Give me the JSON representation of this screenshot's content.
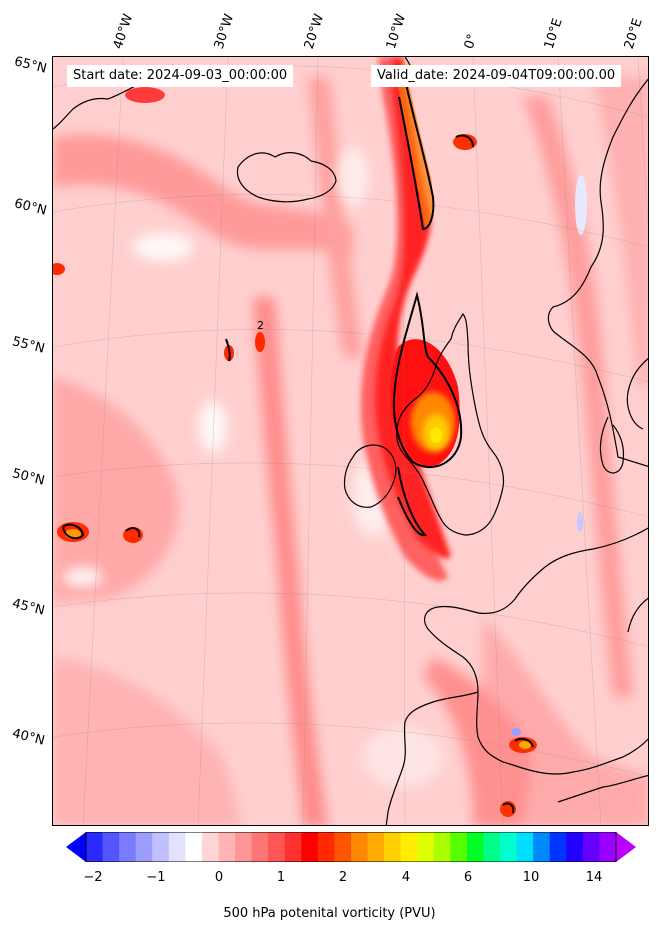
{
  "map": {
    "start_date": "Start date: 2024-09-03_00:00:00",
    "valid_date": "Valid_date: 2024-09-04T09:00:00.00",
    "lat_labels": [
      "65°N",
      "60°N",
      "55°N",
      "50°N",
      "45°N",
      "40°N"
    ],
    "lon_labels": [
      "40°W",
      "30°W",
      "20°W",
      "10°W",
      "0°",
      "10°E",
      "20°E"
    ],
    "contour_label": "2"
  },
  "colorbar": {
    "label": "500 hPa potenital vorticity (PVU)",
    "ticks": [
      "−2",
      "−1",
      "0",
      "1",
      "2",
      "4",
      "6",
      "10",
      "14"
    ],
    "colors": [
      "#0000ff",
      "#2a2aff",
      "#5555ff",
      "#7b7bff",
      "#9e9eff",
      "#c0c0ff",
      "#e2e2ff",
      "#ffffff",
      "#ffd5d5",
      "#ffb5b5",
      "#ff9696",
      "#ff7575",
      "#ff5555",
      "#ff3030",
      "#ff0000",
      "#ff2a00",
      "#ff5500",
      "#ff8800",
      "#ffaa00",
      "#ffd000",
      "#ffee00",
      "#ddff00",
      "#aaff00",
      "#55ff00",
      "#00ff22",
      "#00ff88",
      "#00ffcc",
      "#00ddff",
      "#0088ff",
      "#0033ff",
      "#2200ff",
      "#6600ff",
      "#9900ff",
      "#bb00ff"
    ]
  }
}
